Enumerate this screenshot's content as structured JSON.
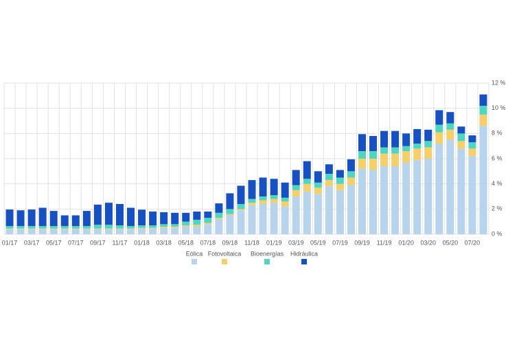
{
  "chart_data": {
    "type": "stacked_bar",
    "categories": [
      "01/17",
      null,
      "03/17",
      null,
      "05/17",
      null,
      "07/17",
      null,
      "09/17",
      null,
      "11/17",
      null,
      "01/18",
      null,
      "03/18",
      null,
      "05/18",
      null,
      "07/18",
      null,
      "09/18",
      null,
      "11/18",
      null,
      "01/19",
      null,
      "03/19",
      null,
      "05/19",
      null,
      "07/19",
      null,
      "09/19",
      null,
      "11/19",
      null,
      "01/20",
      null,
      "03/20",
      null,
      "05/20",
      null,
      "07/20",
      null
    ],
    "series": [
      {
        "name": "Eólica",
        "color": "#b8d3ec",
        "values": [
          0.4,
          0.4,
          0.4,
          0.4,
          0.4,
          0.4,
          0.4,
          0.4,
          0.4,
          0.4,
          0.4,
          0.4,
          0.45,
          0.45,
          0.5,
          0.5,
          0.6,
          0.6,
          0.8,
          1.2,
          1.5,
          1.9,
          2.3,
          2.4,
          2.5,
          2.2,
          3.0,
          3.4,
          3.2,
          3.8,
          3.5,
          3.9,
          5.2,
          5.1,
          5.4,
          5.4,
          5.7,
          5.9,
          6.0,
          7.2,
          7.5,
          6.8,
          6.2,
          8.6
        ]
      },
      {
        "name": "Fotovoltaica",
        "color": "#f5cf6a",
        "values": [
          0.05,
          0.05,
          0.05,
          0.05,
          0.05,
          0.05,
          0.05,
          0.05,
          0.05,
          0.05,
          0.05,
          0.05,
          0.05,
          0.05,
          0.1,
          0.1,
          0.1,
          0.15,
          0.1,
          0.1,
          0.1,
          0.1,
          0.2,
          0.3,
          0.3,
          0.4,
          0.5,
          0.6,
          0.5,
          0.5,
          0.5,
          0.6,
          0.8,
          0.9,
          1.0,
          1.0,
          0.9,
          0.9,
          0.9,
          0.9,
          0.8,
          0.6,
          0.6,
          0.9
        ]
      },
      {
        "name": "Bioenergías",
        "color": "#4fd6c0",
        "values": [
          0.2,
          0.2,
          0.2,
          0.2,
          0.2,
          0.2,
          0.2,
          0.2,
          0.3,
          0.3,
          0.25,
          0.2,
          0.2,
          0.2,
          0.2,
          0.2,
          0.3,
          0.4,
          0.4,
          0.4,
          0.4,
          0.4,
          0.3,
          0.3,
          0.3,
          0.3,
          0.4,
          0.4,
          0.4,
          0.5,
          0.5,
          0.5,
          0.6,
          0.6,
          0.5,
          0.5,
          0.4,
          0.4,
          0.5,
          0.6,
          0.5,
          0.6,
          0.5,
          0.7
        ]
      },
      {
        "name": "Hidráulica",
        "color": "#1750c0",
        "values": [
          1.31,
          1.25,
          1.31,
          1.45,
          1.2,
          0.85,
          0.85,
          1.2,
          1.6,
          1.75,
          1.7,
          1.45,
          1.25,
          1.1,
          0.95,
          0.9,
          0.7,
          0.65,
          0.5,
          0.75,
          1.25,
          1.45,
          1.5,
          1.5,
          1.3,
          1.2,
          1.2,
          1.4,
          0.9,
          0.75,
          0.6,
          0.95,
          1.35,
          1.2,
          1.3,
          1.3,
          1.0,
          1.15,
          0.9,
          1.15,
          0.9,
          0.55,
          0.55,
          0.9
        ]
      }
    ],
    "ylim": [
      0,
      12
    ],
    "yticks": [
      {
        "value": 0,
        "label": "0 %"
      },
      {
        "value": 2,
        "label": "2 %"
      },
      {
        "value": 4,
        "label": "4 %"
      },
      {
        "value": 6,
        "label": "6 %"
      },
      {
        "value": 8,
        "label": "8 %"
      },
      {
        "value": 10,
        "label": "10 %"
      },
      {
        "value": 12,
        "label": "12 %"
      }
    ],
    "grid": true
  }
}
